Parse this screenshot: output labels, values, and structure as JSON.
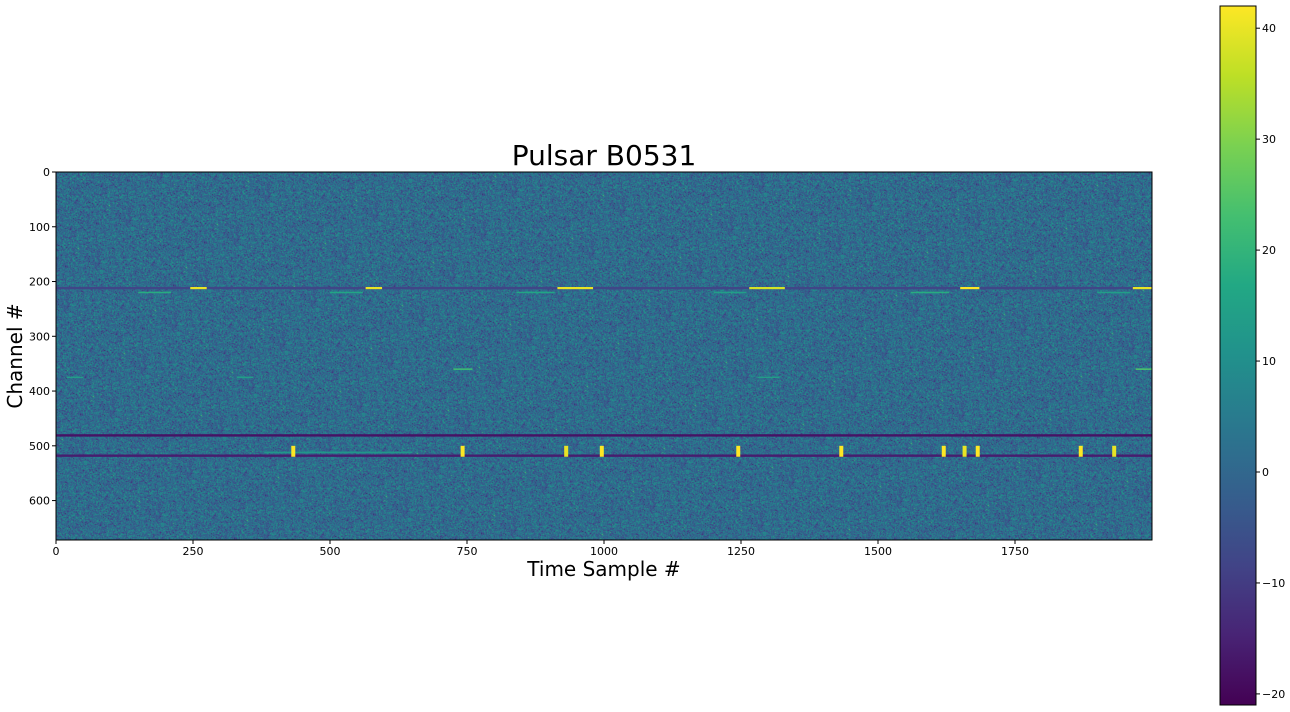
{
  "chart_data": {
    "type": "heatmap",
    "title": "Pulsar B0531",
    "xlabel": "Time Sample #",
    "ylabel": "Channel #",
    "xlim": [
      0,
      2000
    ],
    "ylim": [
      672,
      0
    ],
    "x_ticks": [
      0,
      250,
      500,
      750,
      1000,
      1250,
      1500,
      1750
    ],
    "x_tick_labels": [
      "0",
      "250",
      "500",
      "750",
      "1000",
      "1250",
      "1500",
      "1750"
    ],
    "y_ticks": [
      0,
      100,
      200,
      300,
      400,
      500,
      600
    ],
    "y_tick_labels": [
      "0",
      "100",
      "200",
      "300",
      "400",
      "500",
      "600"
    ],
    "colormap": "viridis",
    "colorbar": {
      "range": [
        -21,
        42
      ],
      "ticks": [
        -20,
        -10,
        0,
        10,
        20,
        30,
        40
      ],
      "tick_labels": [
        "−20",
        "−10",
        "0",
        "10",
        "20",
        "30",
        "40"
      ]
    },
    "background_mean": 1,
    "features": {
      "dark_channel_lines": [
        {
          "channel": 212,
          "value": -8
        },
        {
          "channel": 481,
          "value": -18
        },
        {
          "channel": 518,
          "value": -16
        }
      ],
      "bright_streaks_channel_212": [
        {
          "x_start": 245,
          "x_end": 275,
          "value": 40
        },
        {
          "x_start": 565,
          "x_end": 595,
          "value": 40
        },
        {
          "x_start": 915,
          "x_end": 980,
          "value": 40
        },
        {
          "x_start": 1265,
          "x_end": 1330,
          "value": 38
        },
        {
          "x_start": 1650,
          "x_end": 1685,
          "value": 42
        },
        {
          "x_start": 1965,
          "x_end": 2000,
          "value": 40
        }
      ],
      "faint_streaks": [
        {
          "x_start": 150,
          "x_end": 210,
          "channel": 220,
          "value": 18
        },
        {
          "x_start": 500,
          "x_end": 560,
          "channel": 220,
          "value": 16
        },
        {
          "x_start": 840,
          "x_end": 910,
          "channel": 220,
          "value": 16
        },
        {
          "x_start": 1200,
          "x_end": 1260,
          "channel": 220,
          "value": 14
        },
        {
          "x_start": 1560,
          "x_end": 1630,
          "channel": 220,
          "value": 18
        },
        {
          "x_start": 1900,
          "x_end": 1960,
          "channel": 220,
          "value": 14
        },
        {
          "x_start": 20,
          "x_end": 50,
          "channel": 375,
          "value": 14
        },
        {
          "x_start": 330,
          "x_end": 360,
          "channel": 375,
          "value": 14
        },
        {
          "x_start": 725,
          "x_end": 760,
          "channel": 360,
          "value": 22
        },
        {
          "x_start": 1280,
          "x_end": 1320,
          "channel": 375,
          "value": 14
        },
        {
          "x_start": 1970,
          "x_end": 2000,
          "channel": 360,
          "value": 24
        },
        {
          "x_start": 380,
          "x_end": 650,
          "channel": 512,
          "value": 12
        }
      ],
      "pulses": [
        {
          "x": 433,
          "value": 42
        },
        {
          "x": 742,
          "value": 42
        },
        {
          "x": 931,
          "value": 40
        },
        {
          "x": 996,
          "value": 42
        },
        {
          "x": 1245,
          "value": 42
        },
        {
          "x": 1433,
          "value": 42
        },
        {
          "x": 1620,
          "value": 42
        },
        {
          "x": 1658,
          "value": 40
        },
        {
          "x": 1682,
          "value": 42
        },
        {
          "x": 1870,
          "value": 42
        },
        {
          "x": 1931,
          "value": 40
        }
      ],
      "pulse_channel_range": [
        500,
        520
      ]
    }
  }
}
